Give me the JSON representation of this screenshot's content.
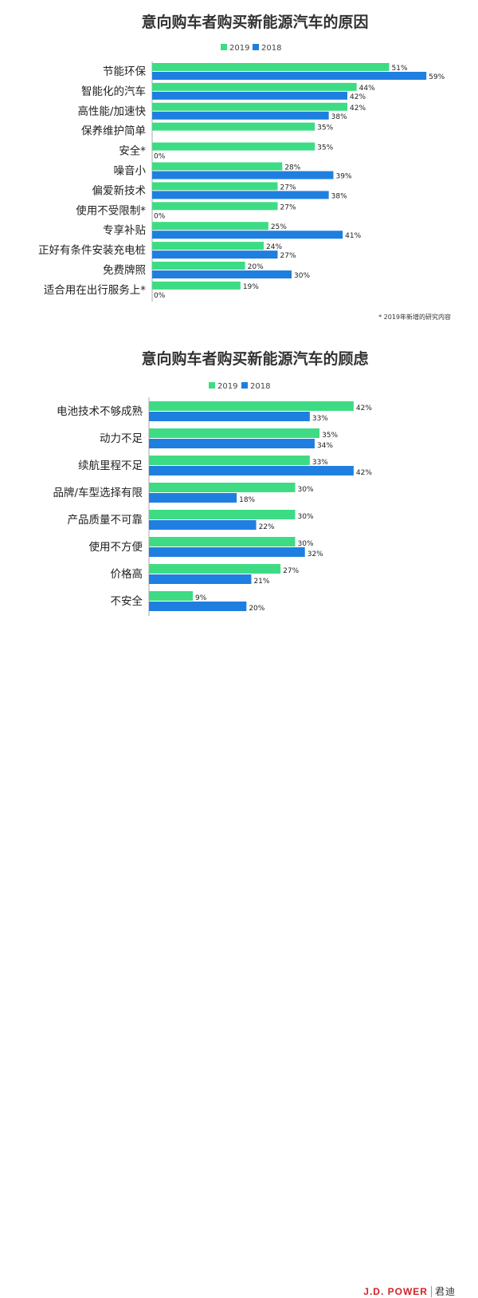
{
  "colors": {
    "y2019": "#3ddc84",
    "y2018": "#1f7fe0",
    "axis": "#aaaaaa"
  },
  "chart_data": [
    {
      "type": "bar",
      "orientation": "horizontal",
      "title": "意向购车者购买新能源汽车的原因",
      "legend": [
        "2019",
        "2018"
      ],
      "legend_position": "top-center",
      "categories": [
        "节能环保",
        "智能化的汽车",
        "高性能/加速快",
        "保养维护简单",
        "安全*",
        "噪音小",
        "偏爱新技术",
        "使用不受限制*",
        "专享补贴",
        "正好有条件安装充电桩",
        "免费牌照",
        "适合用在出行服务上*"
      ],
      "series": [
        {
          "name": "2019",
          "values": [
            51,
            44,
            42,
            35,
            35,
            28,
            27,
            27,
            25,
            24,
            20,
            19
          ],
          "labels": [
            "51%",
            "44%",
            "42%",
            "35%",
            "35%",
            "28%",
            "27%",
            "27%",
            "25%",
            "24%",
            "20%",
            "19%"
          ]
        },
        {
          "name": "2018",
          "values": [
            59,
            42,
            38,
            null,
            0,
            39,
            38,
            0,
            41,
            27,
            30,
            0
          ],
          "labels": [
            "59%",
            "42%",
            "38%",
            "",
            "0%",
            "39%",
            "38%",
            "0%",
            "41%",
            "27%",
            "30%",
            "0%"
          ]
        }
      ],
      "xlim": [
        0,
        60
      ],
      "note": "* 2019年新增的研究内容"
    },
    {
      "type": "bar",
      "orientation": "horizontal",
      "title": "意向购车者购买新能源汽车的顾虑",
      "legend": [
        "2019",
        "2018"
      ],
      "legend_position": "top-center",
      "categories": [
        "电池技术不够成熟",
        "动力不足",
        "续航里程不足",
        "品牌/车型选择有限",
        "产品质量不可靠",
        "使用不方便",
        "价格高",
        "不安全"
      ],
      "series": [
        {
          "name": "2019",
          "values": [
            42,
            35,
            33,
            30,
            30,
            30,
            27,
            9
          ],
          "labels": [
            "42%",
            "35%",
            "33%",
            "30%",
            "30%",
            "30%",
            "27%",
            "9%"
          ]
        },
        {
          "name": "2018",
          "values": [
            33,
            34,
            42,
            18,
            22,
            32,
            21,
            20
          ],
          "labels": [
            "33%",
            "34%",
            "42%",
            "18%",
            "22%",
            "32%",
            "21%",
            "20%"
          ]
        }
      ],
      "xlim": [
        0,
        60
      ]
    }
  ],
  "footer": {
    "brand": "J.D. POWER",
    "brand_cn": "君迪"
  }
}
